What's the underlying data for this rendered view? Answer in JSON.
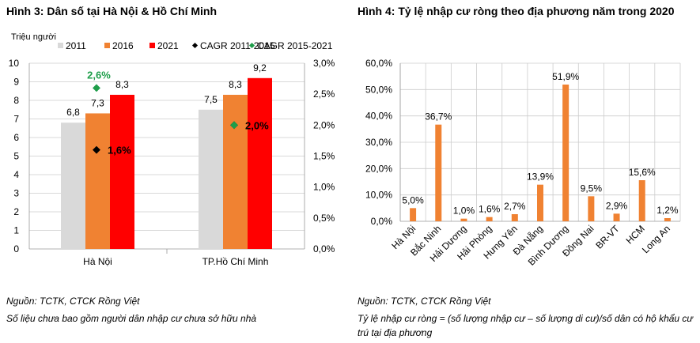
{
  "colors": {
    "s2011": "#d9d9d9",
    "s2016": "#f08232",
    "s2021": "#ff0000",
    "cagr1": "#000000",
    "cagr2": "#1e9e4a",
    "bar4": "#f08232",
    "grid": "#cccccc",
    "axis": "#999999"
  },
  "figures": [
    {
      "title": "Hình 3: Dân số tại Hà Nội & Hồ Chí Minh",
      "source": "Nguồn: TCTK, CTCK Rồng Việt",
      "note": "Số liệu chưa bao gồm người dân nhập cư chưa sở hữu nhà"
    },
    {
      "title": "Hình 4: Tỷ lệ nhập cư ròng theo địa phương năm trong 2020",
      "source": "Nguồn: TCTK, CTCK Rồng Việt",
      "note_line1": "Tỷ lệ nhập cư ròng = (số lượng nhập cư – số lượng di cư)/số dân có hộ khẩu cư",
      "note_line2": "trú tại địa phương"
    }
  ],
  "chart_data": [
    {
      "type": "bar",
      "title": "Hình 3: Dân số tại Hà Nội & Hồ Chí Minh",
      "ylabel": "Triệu người",
      "ylim": [
        0,
        10
      ],
      "y_ticks": [
        "0",
        "1",
        "2",
        "3",
        "4",
        "5",
        "6",
        "7",
        "8",
        "9",
        "10"
      ],
      "y2lim": [
        0,
        3.0
      ],
      "y2_ticks": [
        "0,0%",
        "0,5%",
        "1,0%",
        "1,5%",
        "2,0%",
        "2,5%",
        "3,0%"
      ],
      "categories": [
        "Hà Nội",
        "TP.Hồ Chí Minh"
      ],
      "legend": "top",
      "grid": true,
      "series": [
        {
          "name": "2011",
          "kind": "bar",
          "values": [
            6.8,
            7.5
          ],
          "labels": [
            "6,8",
            "7,5"
          ]
        },
        {
          "name": "2016",
          "kind": "bar",
          "values": [
            7.3,
            8.3
          ],
          "labels": [
            "7,3",
            "8,3"
          ]
        },
        {
          "name": "2021",
          "kind": "bar",
          "values": [
            8.3,
            9.2
          ],
          "labels": [
            "8,3",
            "9,2"
          ]
        },
        {
          "name": "CAGR 2011-2015",
          "kind": "marker",
          "axis": "right",
          "values": [
            1.6,
            2.0
          ],
          "labels": [
            "1,6%",
            "2,0%"
          ]
        },
        {
          "name": "CAGR 2015-2021",
          "kind": "marker",
          "axis": "right",
          "values": [
            2.6,
            2.0
          ],
          "labels": [
            "2,6%",
            ""
          ]
        }
      ]
    },
    {
      "type": "bar",
      "title": "Hình 4: Tỷ lệ nhập cư ròng theo địa phương năm trong 2020",
      "ylim": [
        0,
        60
      ],
      "y_ticks": [
        "0,0%",
        "10,0%",
        "20,0%",
        "30,0%",
        "40,0%",
        "50,0%",
        "60,0%"
      ],
      "categories": [
        "Hà Nội",
        "Bắc Ninh",
        "Hải Dương",
        "Hải Phòng",
        "Hưng Yên",
        "Đà Nẵng",
        "Bình Dương",
        "Đồng Nai",
        "BR-VT",
        "HCM",
        "Long An"
      ],
      "values": [
        5.0,
        36.7,
        1.0,
        1.6,
        2.7,
        13.9,
        51.9,
        9.5,
        2.9,
        15.6,
        1.2
      ],
      "labels": [
        "5,0%",
        "36,7%",
        "1,0%",
        "1,6%",
        "2,7%",
        "13,9%",
        "51,9%",
        "9,5%",
        "2,9%",
        "15,6%",
        "1,2%"
      ],
      "grid": true
    }
  ]
}
